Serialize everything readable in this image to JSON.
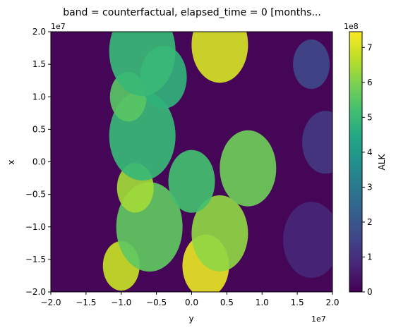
{
  "chart_data": {
    "type": "heatmap",
    "title": "band = counterfactual, elapsed_time = 0 [months...",
    "xlabel": "y",
    "ylabel": "x",
    "x_exponent_label": "1e7",
    "y_exponent_label": "1e7",
    "xlim": [
      -2.0,
      2.0
    ],
    "ylim": [
      -2.0,
      2.0
    ],
    "x_ticks": [
      -2.0,
      -1.5,
      -1.0,
      -0.5,
      0.0,
      0.5,
      1.0,
      1.5,
      2.0
    ],
    "x_tick_labels": [
      "−2.0",
      "−1.5",
      "−1.0",
      "−0.5",
      "0.0",
      "0.5",
      "1.0",
      "1.5",
      "2.0"
    ],
    "y_ticks": [
      -2.0,
      -1.5,
      -1.0,
      -0.5,
      0.0,
      0.5,
      1.0,
      1.5,
      2.0
    ],
    "y_tick_labels": [
      "−2.0",
      "−1.5",
      "−1.0",
      "−0.5",
      "0.0",
      "0.5",
      "1.0",
      "1.5",
      "2.0"
    ],
    "colorbar": {
      "label": "ALK",
      "exponent_label": "1e8",
      "colormap": "viridis",
      "range": [
        0,
        7.45
      ],
      "ticks": [
        0,
        1,
        2,
        3,
        4,
        5,
        6,
        7
      ],
      "tick_labels": [
        "0",
        "1",
        "2",
        "3",
        "4",
        "5",
        "6",
        "7"
      ]
    },
    "field_shape": {
      "background_value": 0.1,
      "ocean_value": 0.0,
      "land_value_range": [
        0.5,
        7.4
      ],
      "grid_on": false
    },
    "field_regions": [
      {
        "y": -1.0,
        "x": -1.6,
        "value": 6.8
      },
      {
        "y": 0.2,
        "x": -1.6,
        "value": 7.2
      },
      {
        "y": 0.4,
        "x": -1.1,
        "value": 6.2
      },
      {
        "y": -0.6,
        "x": -1.0,
        "value": 5.6
      },
      {
        "y": -0.8,
        "x": -0.4,
        "value": 6.4
      },
      {
        "y": 0.0,
        "x": -0.3,
        "value": 5.2
      },
      {
        "y": 0.8,
        "x": -0.1,
        "value": 5.8
      },
      {
        "y": -0.7,
        "x": 0.4,
        "value": 5.0
      },
      {
        "y": -0.9,
        "x": 1.0,
        "value": 5.5
      },
      {
        "y": -0.4,
        "x": 1.3,
        "value": 4.8
      },
      {
        "y": 0.4,
        "x": 1.8,
        "value": 7.0
      },
      {
        "y": -0.7,
        "x": 1.7,
        "value": 5.0
      },
      {
        "y": 1.7,
        "x": 1.5,
        "value": 1.6
      },
      {
        "y": 1.9,
        "x": 0.3,
        "value": 1.2
      },
      {
        "y": 1.7,
        "x": -1.2,
        "value": 0.8
      }
    ]
  }
}
